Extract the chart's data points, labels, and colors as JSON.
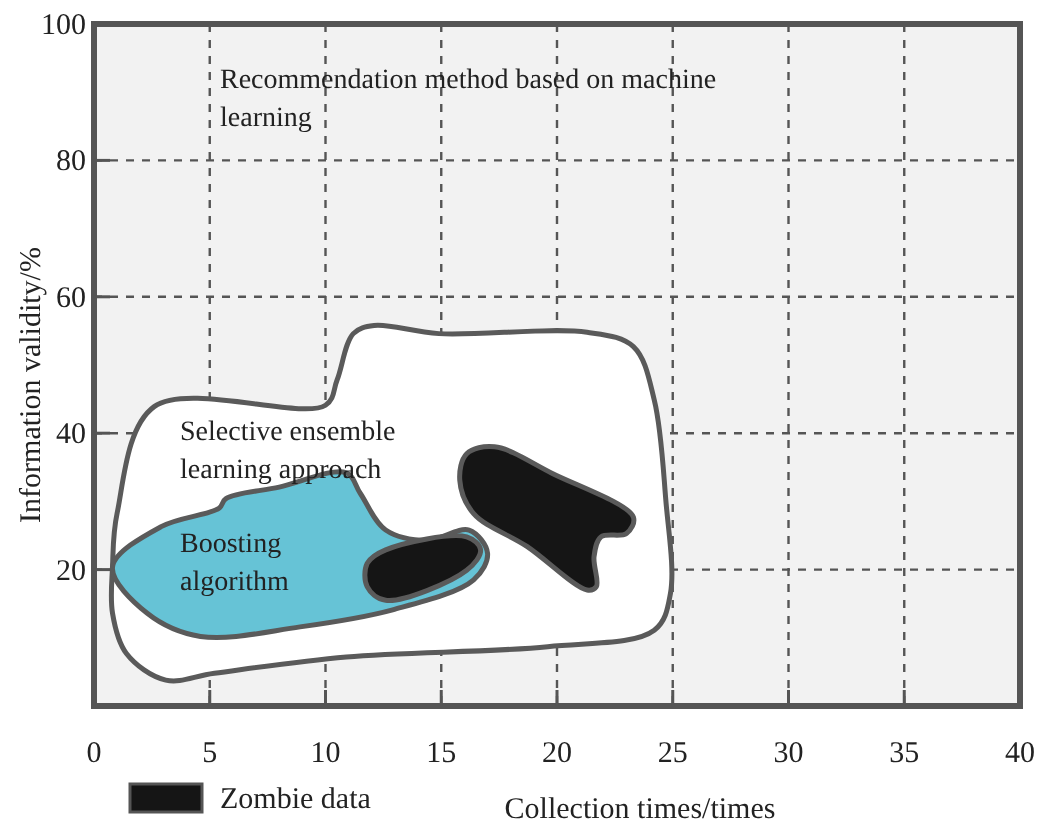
{
  "chart_data": {
    "type": "area",
    "xlabel": "Collection times/times",
    "ylabel": "Information validity/%",
    "xlim": [
      0,
      40
    ],
    "ylim": [
      0,
      100
    ],
    "xticks": [
      0,
      5,
      10,
      15,
      20,
      25,
      30,
      35,
      40
    ],
    "yticks": [
      20,
      40,
      60,
      80,
      100
    ],
    "grid": true,
    "legend": "bottom",
    "annotations": [
      "Recommendation method based on machine learning"
    ],
    "series": [
      {
        "name": "Selective ensemble learning approach",
        "color": "#ffffff",
        "x": [
          0.8,
          1.0,
          2.6,
          10.0,
          10.5,
          11.2,
          12.1,
          14.9,
          21.3,
          23.3,
          24.2,
          24.7,
          24.9,
          24.2,
          19.6,
          10.9,
          5.2,
          3.1,
          1.4,
          0.8
        ],
        "values": [
          20.4,
          28.3,
          43.9,
          44.1,
          47.8,
          54.6,
          55.8,
          54.6,
          54.8,
          52.7,
          44.9,
          30.2,
          16.5,
          11.1,
          8.7,
          7.2,
          4.8,
          3.8,
          7.7,
          13.6
        ]
      },
      {
        "name": "Boosting algorithm",
        "color": "#66c3d6",
        "x": [
          0.8,
          2.9,
          5.4,
          5.7,
          8.0,
          10.9,
          11.5,
          12.6,
          14.4,
          16.2,
          17.0,
          16.4,
          12.9,
          8.9,
          4.6,
          2.3
        ],
        "values": [
          20.4,
          26.3,
          29.0,
          30.4,
          32.1,
          34.2,
          31.2,
          25.8,
          24.3,
          25.8,
          22.4,
          18.5,
          14.1,
          11.6,
          10.2,
          13.6
        ]
      },
      {
        "name": "Zombie data",
        "color": "#151515",
        "x": [
          11.8,
          12.6,
          16.1,
          16.7,
          16.1,
          12.6,
          11.8
        ],
        "values": [
          20.9,
          22.9,
          24.8,
          22.9,
          19.9,
          15.5,
          17.5
        ]
      },
      {
        "color": "#151515",
        "x": [
          16.1,
          17.3,
          19.8,
          23.3,
          23.0,
          21.9,
          21.6,
          21.7,
          21.3,
          18.7,
          16.4,
          15.8
        ],
        "values": [
          37.0,
          38.0,
          34.1,
          27.7,
          25.3,
          24.8,
          21.9,
          17.5,
          17.0,
          23.4,
          28.2,
          33.1
        ]
      }
    ]
  }
}
